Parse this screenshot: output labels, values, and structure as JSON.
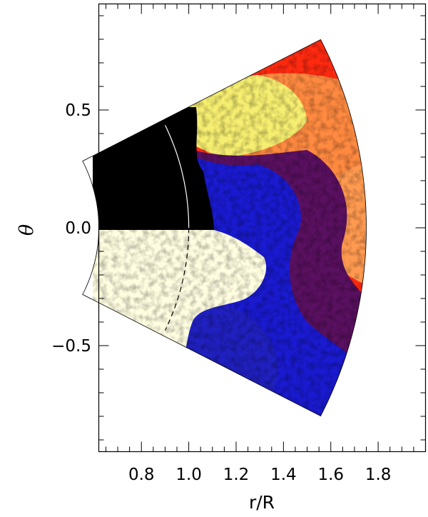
{
  "chart_data": {
    "type": "heatmap",
    "title": "",
    "xlabel": "r/R",
    "ylabel": "θ",
    "xlim": [
      0.62,
      2.0
    ],
    "ylim": [
      -0.95,
      0.95
    ],
    "x_ticks": [
      0.8,
      1.0,
      1.2,
      1.4,
      1.6,
      1.8
    ],
    "x_tick_labels": [
      "0.8",
      "1.0",
      "1.2",
      "1.4",
      "1.6",
      "1.8"
    ],
    "y_ticks": [
      0.5,
      0.0,
      -0.5
    ],
    "y_tick_labels": [
      "0.5",
      "0.0",
      "−0.5"
    ],
    "domain": {
      "r_inner": 0.62,
      "r_outer": 1.75,
      "theta_max": 0.34,
      "note_curve_r": 1.0
    },
    "colors": {
      "black": "#000000",
      "blue": "#1a1ad0",
      "dark_purple": "#4a1060",
      "red": "#ff2a10",
      "orange": "#ff8a40",
      "yellow": "#f4f280",
      "cream": "#fffde0"
    },
    "grid": false,
    "legend": "none"
  }
}
